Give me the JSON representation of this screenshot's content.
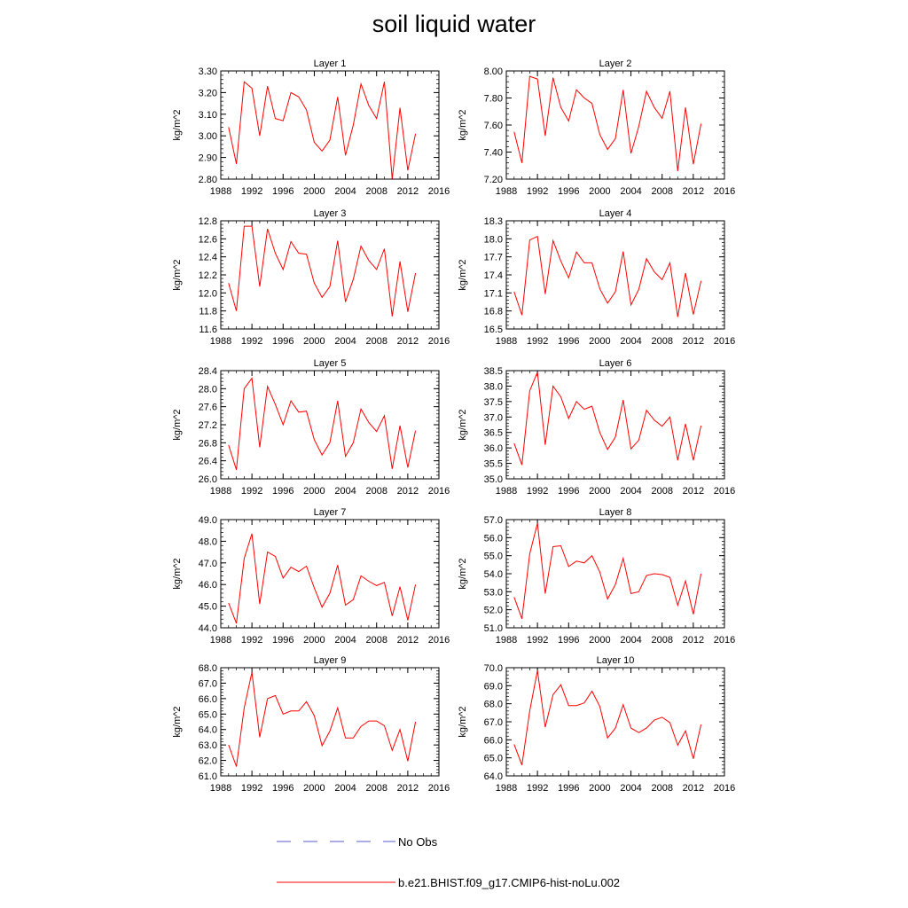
{
  "title": "soil liquid water",
  "legend": {
    "placement": "bottom",
    "entries": [
      {
        "label": "No Obs",
        "style": "dashed",
        "color": "#5a5ad0"
      },
      {
        "label": "b.e21.BHIST.f09_g17.CMIP6-hist-noLu.002",
        "style": "solid",
        "color": "#ff0000"
      }
    ]
  },
  "colors": {
    "series": "#ff0000",
    "obs": "#5a5ad0",
    "axes": "#000000"
  },
  "chart_data": [
    {
      "type": "line",
      "title": "Layer 1",
      "xlabel": "",
      "ylabel": "kg/m^2",
      "xlim": [
        1988,
        2016
      ],
      "ylim": [
        2.8,
        3.3
      ],
      "xticks": [
        1988,
        1992,
        1996,
        2000,
        2004,
        2008,
        2012,
        2016
      ],
      "xtick_labels": [
        "1988",
        "1992",
        "1996",
        "2000",
        "2004",
        "2008",
        "2012",
        "2016"
      ],
      "yticks": [
        2.8,
        2.9,
        3.0,
        3.1,
        3.2,
        3.3
      ],
      "ytick_labels": [
        "2.80",
        "2.90",
        "3.00",
        "3.10",
        "3.20",
        "3.30"
      ],
      "series": [
        {
          "name": "b.e21.BHIST.f09_g17.CMIP6-hist-noLu.002",
          "x": [
            1989,
            1990,
            1991,
            1992,
            1993,
            1994,
            1995,
            1996,
            1997,
            1998,
            1999,
            2000,
            2001,
            2002,
            2003,
            2004,
            2005,
            2006,
            2007,
            2008,
            2009,
            2010,
            2011,
            2012,
            2013
          ],
          "y": [
            3.04,
            2.87,
            3.25,
            3.22,
            3.0,
            3.23,
            3.08,
            3.07,
            3.2,
            3.18,
            3.12,
            2.97,
            2.93,
            2.98,
            3.18,
            2.91,
            3.05,
            3.24,
            3.14,
            3.08,
            3.25,
            2.8,
            3.13,
            2.84,
            3.01
          ]
        }
      ]
    },
    {
      "type": "line",
      "title": "Layer 2",
      "xlabel": "",
      "ylabel": "kg/m^2",
      "xlim": [
        1988,
        2016
      ],
      "ylim": [
        7.2,
        8.0
      ],
      "xticks": [
        1988,
        1992,
        1996,
        2000,
        2004,
        2008,
        2012,
        2016
      ],
      "xtick_labels": [
        "1988",
        "1992",
        "1996",
        "2000",
        "2004",
        "2008",
        "2012",
        "2016"
      ],
      "yticks": [
        7.2,
        7.4,
        7.6,
        7.8,
        8.0
      ],
      "ytick_labels": [
        "7.20",
        "7.40",
        "7.60",
        "7.80",
        "8.00"
      ],
      "series": [
        {
          "name": "b.e21.BHIST.f09_g17.CMIP6-hist-noLu.002",
          "x": [
            1989,
            1990,
            1991,
            1992,
            1993,
            1994,
            1995,
            1996,
            1997,
            1998,
            1999,
            2000,
            2001,
            2002,
            2003,
            2004,
            2005,
            2006,
            2007,
            2008,
            2009,
            2010,
            2011,
            2012,
            2013
          ],
          "y": [
            7.55,
            7.32,
            7.96,
            7.94,
            7.52,
            7.95,
            7.73,
            7.63,
            7.86,
            7.8,
            7.76,
            7.53,
            7.42,
            7.5,
            7.86,
            7.39,
            7.59,
            7.85,
            7.73,
            7.65,
            7.85,
            7.26,
            7.73,
            7.31,
            7.61
          ]
        }
      ]
    },
    {
      "type": "line",
      "title": "Layer 3",
      "xlabel": "",
      "ylabel": "kg/m^2",
      "xlim": [
        1988,
        2016
      ],
      "ylim": [
        11.6,
        12.8
      ],
      "xticks": [
        1988,
        1992,
        1996,
        2000,
        2004,
        2008,
        2012,
        2016
      ],
      "xtick_labels": [
        "1988",
        "1992",
        "1996",
        "2000",
        "2004",
        "2008",
        "2012",
        "2016"
      ],
      "yticks": [
        11.6,
        11.8,
        12.0,
        12.2,
        12.4,
        12.6,
        12.8
      ],
      "ytick_labels": [
        "11.6",
        "11.8",
        "12.0",
        "12.2",
        "12.4",
        "12.6",
        "12.8"
      ],
      "series": [
        {
          "name": "b.e21.BHIST.f09_g17.CMIP6-hist-noLu.002",
          "x": [
            1989,
            1990,
            1991,
            1992,
            1993,
            1994,
            1995,
            1996,
            1997,
            1998,
            1999,
            2000,
            2001,
            2002,
            2003,
            2004,
            2005,
            2006,
            2007,
            2008,
            2009,
            2010,
            2011,
            2012,
            2013
          ],
          "y": [
            12.11,
            11.8,
            12.74,
            12.74,
            12.07,
            12.71,
            12.44,
            12.26,
            12.57,
            12.44,
            12.43,
            12.11,
            11.95,
            12.07,
            12.58,
            11.9,
            12.15,
            12.52,
            12.36,
            12.26,
            12.49,
            11.74,
            12.35,
            11.79,
            12.22
          ]
        }
      ]
    },
    {
      "type": "line",
      "title": "Layer 4",
      "xlabel": "",
      "ylabel": "kg/m^2",
      "xlim": [
        1988,
        2016
      ],
      "ylim": [
        16.5,
        18.3
      ],
      "xticks": [
        1988,
        1992,
        1996,
        2000,
        2004,
        2008,
        2012,
        2016
      ],
      "xtick_labels": [
        "1988",
        "1992",
        "1996",
        "2000",
        "2004",
        "2008",
        "2012",
        "2016"
      ],
      "yticks": [
        16.5,
        16.8,
        17.1,
        17.4,
        17.7,
        18.0,
        18.3
      ],
      "ytick_labels": [
        "16.5",
        "16.8",
        "17.1",
        "17.4",
        "17.7",
        "18.0",
        "18.3"
      ],
      "series": [
        {
          "name": "b.e21.BHIST.f09_g17.CMIP6-hist-noLu.002",
          "x": [
            1989,
            1990,
            1991,
            1992,
            1993,
            1994,
            1995,
            1996,
            1997,
            1998,
            1999,
            2000,
            2001,
            2002,
            2003,
            2004,
            2005,
            2006,
            2007,
            2008,
            2009,
            2010,
            2011,
            2012,
            2013
          ],
          "y": [
            17.12,
            16.73,
            17.98,
            18.04,
            17.08,
            17.97,
            17.63,
            17.35,
            17.78,
            17.6,
            17.6,
            17.17,
            16.93,
            17.12,
            17.79,
            16.9,
            17.16,
            17.67,
            17.45,
            17.32,
            17.6,
            16.7,
            17.43,
            16.74,
            17.3
          ]
        }
      ]
    },
    {
      "type": "line",
      "title": "Layer 5",
      "xlabel": "",
      "ylabel": "kg/m^2",
      "xlim": [
        1988,
        2016
      ],
      "ylim": [
        26.0,
        28.4
      ],
      "xticks": [
        1988,
        1992,
        1996,
        2000,
        2004,
        2008,
        2012,
        2016
      ],
      "xtick_labels": [
        "1988",
        "1992",
        "1996",
        "2000",
        "2004",
        "2008",
        "2012",
        "2016"
      ],
      "yticks": [
        26.0,
        26.4,
        26.8,
        27.2,
        27.6,
        28.0,
        28.4
      ],
      "ytick_labels": [
        "26.0",
        "26.4",
        "26.8",
        "27.2",
        "27.6",
        "28.0",
        "28.4"
      ],
      "series": [
        {
          "name": "b.e21.BHIST.f09_g17.CMIP6-hist-noLu.002",
          "x": [
            1989,
            1990,
            1991,
            1992,
            1993,
            1994,
            1995,
            1996,
            1997,
            1998,
            1999,
            2000,
            2001,
            2002,
            2003,
            2004,
            2005,
            2006,
            2007,
            2008,
            2009,
            2010,
            2011,
            2012,
            2013
          ],
          "y": [
            26.75,
            26.2,
            28.0,
            28.23,
            26.7,
            28.05,
            27.65,
            27.2,
            27.73,
            27.48,
            27.5,
            26.87,
            26.53,
            26.8,
            27.73,
            26.5,
            26.8,
            27.55,
            27.25,
            27.05,
            27.4,
            26.22,
            27.18,
            26.25,
            27.07
          ]
        }
      ]
    },
    {
      "type": "line",
      "title": "Layer 6",
      "xlabel": "",
      "ylabel": "kg/m^2",
      "xlim": [
        1988,
        2016
      ],
      "ylim": [
        35.0,
        38.5
      ],
      "xticks": [
        1988,
        1992,
        1996,
        2000,
        2004,
        2008,
        2012,
        2016
      ],
      "xtick_labels": [
        "1988",
        "1992",
        "1996",
        "2000",
        "2004",
        "2008",
        "2012",
        "2016"
      ],
      "yticks": [
        35.0,
        35.5,
        36.0,
        36.5,
        37.0,
        37.5,
        38.0,
        38.5
      ],
      "ytick_labels": [
        "35.0",
        "35.5",
        "36.0",
        "36.5",
        "37.0",
        "37.5",
        "38.0",
        "38.5"
      ],
      "series": [
        {
          "name": "b.e21.BHIST.f09_g17.CMIP6-hist-noLu.002",
          "x": [
            1989,
            1990,
            1991,
            1992,
            1993,
            1994,
            1995,
            1996,
            1997,
            1998,
            1999,
            2000,
            2001,
            2002,
            2003,
            2004,
            2005,
            2006,
            2007,
            2008,
            2009,
            2010,
            2011,
            2012,
            2013
          ],
          "y": [
            36.15,
            35.45,
            37.85,
            38.45,
            36.1,
            38.0,
            37.65,
            36.95,
            37.5,
            37.25,
            37.35,
            36.5,
            35.95,
            36.35,
            37.55,
            35.97,
            36.25,
            37.22,
            36.9,
            36.7,
            37.0,
            35.6,
            36.78,
            35.6,
            36.72
          ]
        }
      ]
    },
    {
      "type": "line",
      "title": "Layer 7",
      "xlabel": "",
      "ylabel": "kg/m^2",
      "xlim": [
        1988,
        2016
      ],
      "ylim": [
        44.0,
        49.0
      ],
      "xticks": [
        1988,
        1992,
        1996,
        2000,
        2004,
        2008,
        2012,
        2016
      ],
      "xtick_labels": [
        "1988",
        "1992",
        "1996",
        "2000",
        "2004",
        "2008",
        "2012",
        "2016"
      ],
      "yticks": [
        44.0,
        45.0,
        46.0,
        47.0,
        48.0,
        49.0
      ],
      "ytick_labels": [
        "44.0",
        "45.0",
        "46.0",
        "47.0",
        "48.0",
        "49.0"
      ],
      "series": [
        {
          "name": "b.e21.BHIST.f09_g17.CMIP6-hist-noLu.002",
          "x": [
            1989,
            1990,
            1991,
            1992,
            1993,
            1994,
            1995,
            1996,
            1997,
            1998,
            1999,
            2000,
            2001,
            2002,
            2003,
            2004,
            2005,
            2006,
            2007,
            2008,
            2009,
            2010,
            2011,
            2012,
            2013
          ],
          "y": [
            45.15,
            44.2,
            47.2,
            48.35,
            45.1,
            47.5,
            47.3,
            46.3,
            46.8,
            46.6,
            46.85,
            45.85,
            44.95,
            45.6,
            46.9,
            45.05,
            45.3,
            46.4,
            46.15,
            45.95,
            46.1,
            44.55,
            45.9,
            44.35,
            46.0
          ]
        }
      ]
    },
    {
      "type": "line",
      "title": "Layer 8",
      "xlabel": "",
      "ylabel": "kg/m^2",
      "xlim": [
        1988,
        2016
      ],
      "ylim": [
        51.0,
        57.0
      ],
      "xticks": [
        1988,
        1992,
        1996,
        2000,
        2004,
        2008,
        2012,
        2016
      ],
      "xtick_labels": [
        "1988",
        "1992",
        "1996",
        "2000",
        "2004",
        "2008",
        "2012",
        "2016"
      ],
      "yticks": [
        51.0,
        52.0,
        53.0,
        54.0,
        55.0,
        56.0,
        57.0
      ],
      "ytick_labels": [
        "51.0",
        "52.0",
        "53.0",
        "54.0",
        "55.0",
        "56.0",
        "57.0"
      ],
      "series": [
        {
          "name": "b.e21.BHIST.f09_g17.CMIP6-hist-noLu.002",
          "x": [
            1989,
            1990,
            1991,
            1992,
            1993,
            1994,
            1995,
            1996,
            1997,
            1998,
            1999,
            2000,
            2001,
            2002,
            2003,
            2004,
            2005,
            2006,
            2007,
            2008,
            2009,
            2010,
            2011,
            2012,
            2013
          ],
          "y": [
            52.7,
            51.5,
            55.1,
            56.8,
            52.9,
            55.5,
            55.55,
            54.4,
            54.7,
            54.6,
            55.0,
            54.1,
            52.6,
            53.4,
            54.85,
            52.9,
            53.0,
            53.9,
            54.0,
            53.95,
            53.8,
            52.25,
            53.6,
            51.75,
            54.0
          ]
        }
      ]
    },
    {
      "type": "line",
      "title": "Layer 9",
      "xlabel": "",
      "ylabel": "kg/m^2",
      "xlim": [
        1988,
        2016
      ],
      "ylim": [
        61.0,
        68.0
      ],
      "xticks": [
        1988,
        1992,
        1996,
        2000,
        2004,
        2008,
        2012,
        2016
      ],
      "xtick_labels": [
        "1988",
        "1992",
        "1996",
        "2000",
        "2004",
        "2008",
        "2012",
        "2016"
      ],
      "yticks": [
        61.0,
        62.0,
        63.0,
        64.0,
        65.0,
        66.0,
        67.0,
        68.0
      ],
      "ytick_labels": [
        "61.0",
        "62.0",
        "63.0",
        "64.0",
        "65.0",
        "66.0",
        "67.0",
        "68.0"
      ],
      "series": [
        {
          "name": "b.e21.BHIST.f09_g17.CMIP6-hist-noLu.002",
          "x": [
            1989,
            1990,
            1991,
            1992,
            1993,
            1994,
            1995,
            1996,
            1997,
            1998,
            1999,
            2000,
            2001,
            2002,
            2003,
            2004,
            2005,
            2006,
            2007,
            2008,
            2009,
            2010,
            2011,
            2012,
            2013
          ],
          "y": [
            63.0,
            61.6,
            65.4,
            67.7,
            63.5,
            66.0,
            66.2,
            65.0,
            65.2,
            65.2,
            65.8,
            64.9,
            62.95,
            63.9,
            65.4,
            63.45,
            63.45,
            64.2,
            64.55,
            64.55,
            64.25,
            62.65,
            64.0,
            61.95,
            64.5
          ]
        }
      ]
    },
    {
      "type": "line",
      "title": "Layer 10",
      "xlabel": "",
      "ylabel": "kg/m^2",
      "xlim": [
        1988,
        2016
      ],
      "ylim": [
        64.0,
        70.0
      ],
      "xticks": [
        1988,
        1992,
        1996,
        2000,
        2004,
        2008,
        2012,
        2016
      ],
      "xtick_labels": [
        "1988",
        "1992",
        "1996",
        "2000",
        "2004",
        "2008",
        "2012",
        "2016"
      ],
      "yticks": [
        64.0,
        65.0,
        66.0,
        67.0,
        68.0,
        69.0,
        70.0
      ],
      "ytick_labels": [
        "64.0",
        "65.0",
        "66.0",
        "67.0",
        "68.0",
        "69.0",
        "70.0"
      ],
      "series": [
        {
          "name": "b.e21.BHIST.f09_g17.CMIP6-hist-noLu.002",
          "x": [
            1989,
            1990,
            1991,
            1992,
            1993,
            1994,
            1995,
            1996,
            1997,
            1998,
            1999,
            2000,
            2001,
            2002,
            2003,
            2004,
            2005,
            2006,
            2007,
            2008,
            2009,
            2010,
            2011,
            2012,
            2013
          ],
          "y": [
            65.75,
            64.6,
            67.6,
            69.85,
            66.7,
            68.5,
            69.05,
            67.9,
            67.9,
            68.05,
            68.7,
            67.85,
            66.1,
            66.65,
            67.95,
            66.65,
            66.4,
            66.65,
            67.1,
            67.25,
            66.95,
            65.7,
            66.5,
            64.95,
            66.85
          ]
        }
      ]
    }
  ]
}
